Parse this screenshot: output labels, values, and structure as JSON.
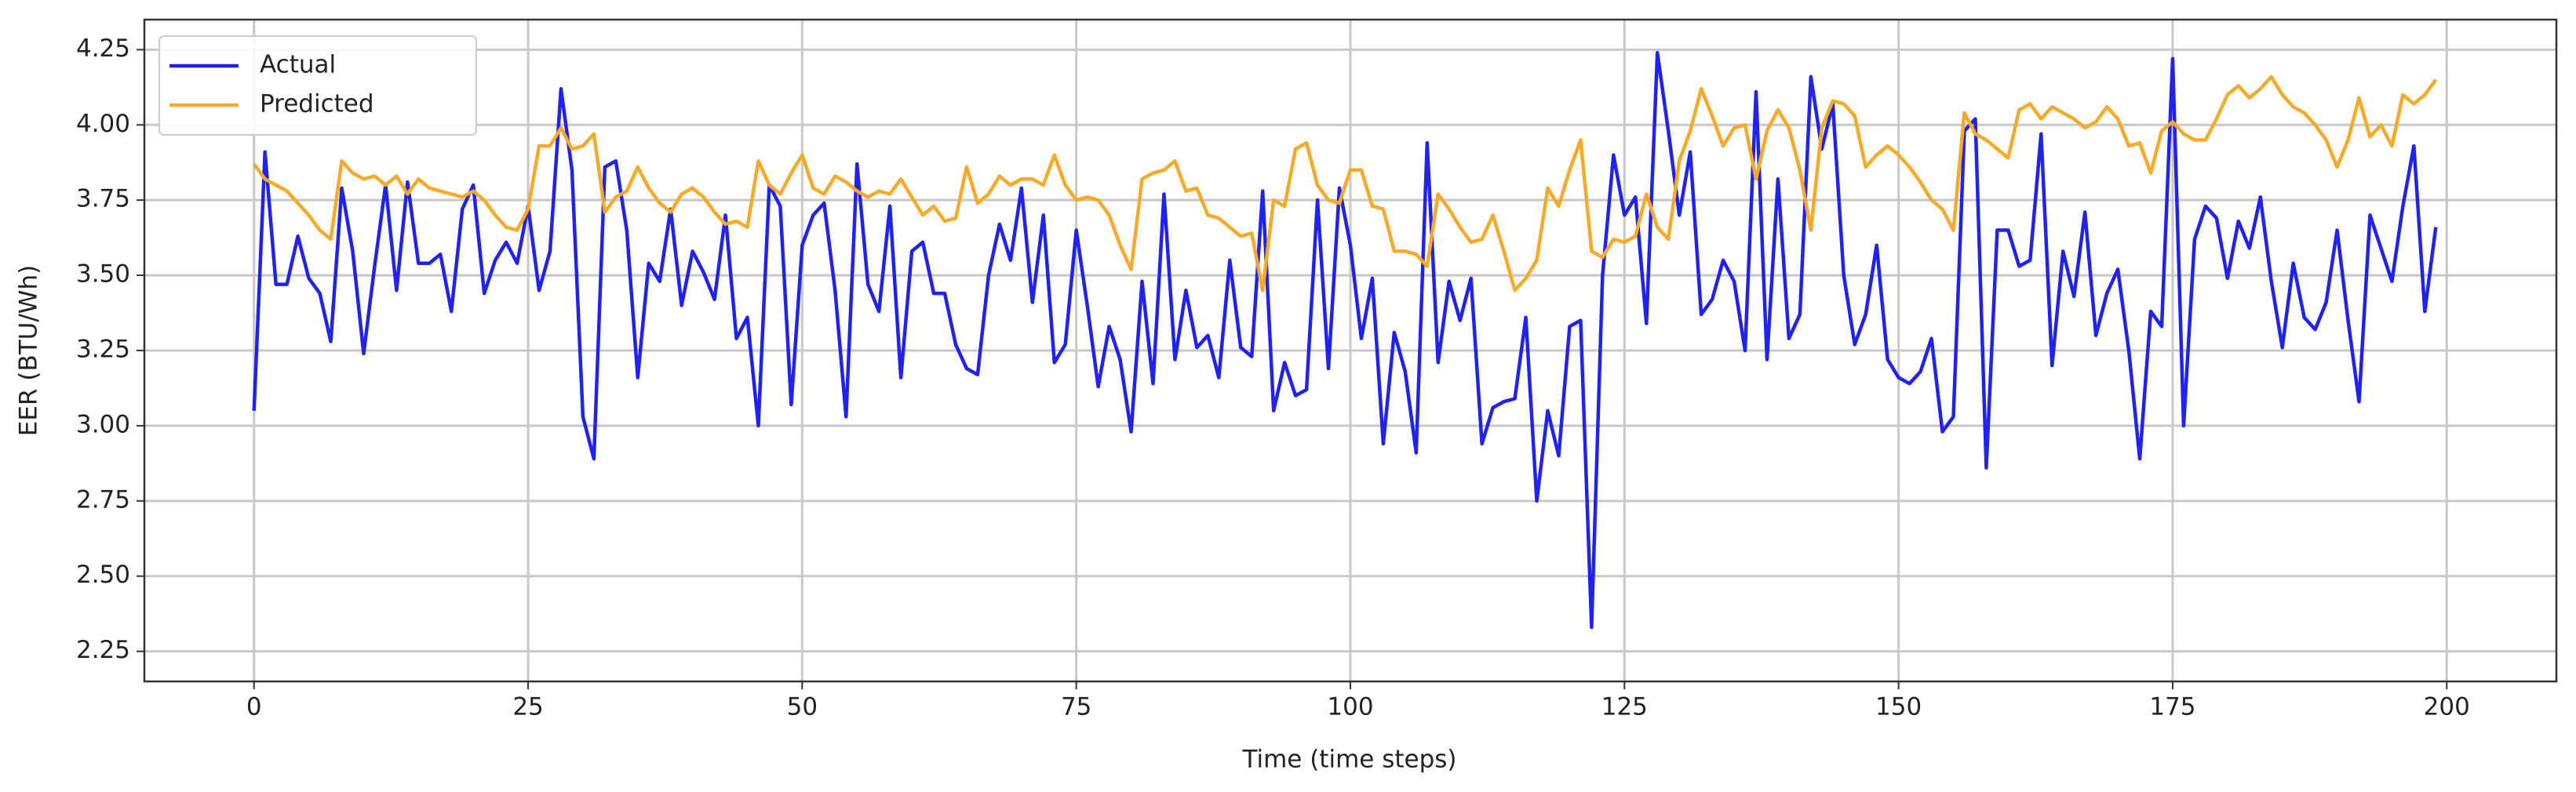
{
  "chart_data": {
    "type": "line",
    "xlabel": "Time (time steps)",
    "ylabel": "EER (BTU/Wh)",
    "x": [
      0,
      1,
      2,
      3,
      4,
      5,
      6,
      7,
      8,
      9,
      10,
      11,
      12,
      13,
      14,
      15,
      16,
      17,
      18,
      19,
      20,
      21,
      22,
      23,
      24,
      25,
      26,
      27,
      28,
      29,
      30,
      31,
      32,
      33,
      34,
      35,
      36,
      37,
      38,
      39,
      40,
      41,
      42,
      43,
      44,
      45,
      46,
      47,
      48,
      49,
      50,
      51,
      52,
      53,
      54,
      55,
      56,
      57,
      58,
      59,
      60,
      61,
      62,
      63,
      64,
      65,
      66,
      67,
      68,
      69,
      70,
      71,
      72,
      73,
      74,
      75,
      76,
      77,
      78,
      79,
      80,
      81,
      82,
      83,
      84,
      85,
      86,
      87,
      88,
      89,
      90,
      91,
      92,
      93,
      94,
      95,
      96,
      97,
      98,
      99,
      100,
      101,
      102,
      103,
      104,
      105,
      106,
      107,
      108,
      109,
      110,
      111,
      112,
      113,
      114,
      115,
      116,
      117,
      118,
      119,
      120,
      121,
      122,
      123,
      124,
      125,
      126,
      127,
      128,
      129,
      130,
      131,
      132,
      133,
      134,
      135,
      136,
      137,
      138,
      139,
      140,
      141,
      142,
      143,
      144,
      145,
      146,
      147,
      148,
      149,
      150,
      151,
      152,
      153,
      154,
      155,
      156,
      157,
      158,
      159,
      160,
      161,
      162,
      163,
      164,
      165,
      166,
      167,
      168,
      169,
      170,
      171,
      172,
      173,
      174,
      175,
      176,
      177,
      178,
      179,
      180,
      181,
      182,
      183,
      184,
      185,
      186,
      187,
      188,
      189,
      190,
      191,
      192,
      193,
      194,
      195,
      196,
      197,
      198,
      199
    ],
    "series": [
      {
        "name": "Actual",
        "color": "#1f22f0",
        "values": [
          3.05,
          3.91,
          3.47,
          3.47,
          3.63,
          3.49,
          3.44,
          3.28,
          3.79,
          3.58,
          3.24,
          3.53,
          3.8,
          3.45,
          3.81,
          3.54,
          3.54,
          3.57,
          3.38,
          3.72,
          3.8,
          3.44,
          3.55,
          3.61,
          3.54,
          3.73,
          3.45,
          3.58,
          4.12,
          3.85,
          3.03,
          2.89,
          3.86,
          3.88,
          3.65,
          3.16,
          3.54,
          3.48,
          3.72,
          3.4,
          3.58,
          3.51,
          3.42,
          3.7,
          3.29,
          3.36,
          3.0,
          3.8,
          3.73,
          3.07,
          3.6,
          3.7,
          3.74,
          3.45,
          3.03,
          3.87,
          3.47,
          3.38,
          3.73,
          3.16,
          3.58,
          3.61,
          3.44,
          3.44,
          3.27,
          3.19,
          3.17,
          3.5,
          3.67,
          3.55,
          3.79,
          3.41,
          3.7,
          3.21,
          3.27,
          3.65,
          3.4,
          3.13,
          3.33,
          3.22,
          2.98,
          3.48,
          3.14,
          3.77,
          3.22,
          3.45,
          3.26,
          3.3,
          3.16,
          3.55,
          3.26,
          3.23,
          3.78,
          3.05,
          3.21,
          3.1,
          3.12,
          3.75,
          3.19,
          3.79,
          3.6,
          3.29,
          3.49,
          2.94,
          3.31,
          3.18,
          2.91,
          3.94,
          3.21,
          3.48,
          3.35,
          3.49,
          2.94,
          3.06,
          3.08,
          3.09,
          3.36,
          2.75,
          3.05,
          2.9,
          3.33,
          3.35,
          2.33,
          3.5,
          3.9,
          3.7,
          3.76,
          3.34,
          4.24,
          3.98,
          3.7,
          3.91,
          3.37,
          3.42,
          3.55,
          3.48,
          3.25,
          4.11,
          3.22,
          3.82,
          3.29,
          3.37,
          4.16,
          3.92,
          4.07,
          3.5,
          3.27,
          3.37,
          3.6,
          3.22,
          3.16,
          3.14,
          3.18,
          3.29,
          2.98,
          3.03,
          3.98,
          4.02,
          2.86,
          3.65,
          3.65,
          3.53,
          3.55,
          3.97,
          3.2,
          3.58,
          3.43,
          3.71,
          3.3,
          3.44,
          3.52,
          3.25,
          2.89,
          3.38,
          3.33,
          4.22,
          3.0,
          3.62,
          3.73,
          3.69,
          3.49,
          3.68,
          3.59,
          3.76,
          3.48,
          3.26,
          3.54,
          3.36,
          3.32,
          3.41,
          3.65,
          3.35,
          3.08,
          3.7,
          3.59,
          3.48,
          3.73,
          3.93,
          3.38,
          3.66
        ]
      },
      {
        "name": "Predicted",
        "color": "#f7a928",
        "values": [
          3.87,
          3.82,
          3.8,
          3.78,
          3.74,
          3.7,
          3.65,
          3.62,
          3.88,
          3.84,
          3.82,
          3.83,
          3.8,
          3.83,
          3.77,
          3.82,
          3.79,
          3.78,
          3.77,
          3.76,
          3.78,
          3.75,
          3.7,
          3.66,
          3.65,
          3.72,
          3.93,
          3.93,
          3.99,
          3.92,
          3.93,
          3.97,
          3.71,
          3.76,
          3.78,
          3.86,
          3.79,
          3.74,
          3.71,
          3.77,
          3.79,
          3.76,
          3.71,
          3.67,
          3.68,
          3.66,
          3.88,
          3.8,
          3.77,
          3.84,
          3.9,
          3.79,
          3.77,
          3.83,
          3.81,
          3.78,
          3.76,
          3.78,
          3.77,
          3.82,
          3.76,
          3.7,
          3.73,
          3.68,
          3.69,
          3.86,
          3.74,
          3.77,
          3.83,
          3.8,
          3.82,
          3.82,
          3.8,
          3.9,
          3.8,
          3.75,
          3.76,
          3.75,
          3.7,
          3.6,
          3.52,
          3.82,
          3.84,
          3.85,
          3.88,
          3.78,
          3.79,
          3.7,
          3.69,
          3.66,
          3.63,
          3.64,
          3.45,
          3.75,
          3.73,
          3.92,
          3.94,
          3.8,
          3.75,
          3.74,
          3.85,
          3.85,
          3.73,
          3.72,
          3.58,
          3.58,
          3.57,
          3.53,
          3.77,
          3.72,
          3.66,
          3.61,
          3.62,
          3.7,
          3.58,
          3.45,
          3.49,
          3.55,
          3.79,
          3.73,
          3.85,
          3.95,
          3.58,
          3.56,
          3.62,
          3.61,
          3.63,
          3.77,
          3.66,
          3.62,
          3.88,
          3.98,
          4.12,
          4.03,
          3.93,
          3.99,
          4.0,
          3.82,
          3.98,
          4.05,
          3.99,
          3.85,
          3.65,
          3.99,
          4.08,
          4.07,
          4.03,
          3.86,
          3.9,
          3.93,
          3.9,
          3.86,
          3.81,
          3.75,
          3.72,
          3.65,
          4.04,
          3.97,
          3.95,
          3.92,
          3.89,
          4.05,
          4.07,
          4.02,
          4.06,
          4.04,
          4.02,
          3.99,
          4.01,
          4.06,
          4.02,
          3.93,
          3.94,
          3.84,
          3.98,
          4.01,
          3.97,
          3.95,
          3.95,
          4.02,
          4.1,
          4.13,
          4.09,
          4.12,
          4.16,
          4.1,
          4.06,
          4.04,
          4.0,
          3.95,
          3.86,
          3.95,
          4.09,
          3.96,
          4.0,
          3.93,
          4.1,
          4.07,
          4.1,
          4.15
        ]
      }
    ],
    "xlim": [
      -10,
      210
    ],
    "ylim": [
      2.15,
      4.35
    ],
    "xticks": [
      0,
      25,
      50,
      75,
      100,
      125,
      150,
      175,
      200
    ],
    "yticks": [
      2.25,
      {
        "value": 2.5,
        "label": "2.50"
      },
      2.75,
      {
        "value": 3,
        "label": "3.00"
      },
      3.25,
      {
        "value": 3.5,
        "label": "3.50"
      },
      3.75,
      {
        "value": 4,
        "label": "4.00"
      },
      4.25
    ],
    "grid": true,
    "legend": "upper left"
  }
}
